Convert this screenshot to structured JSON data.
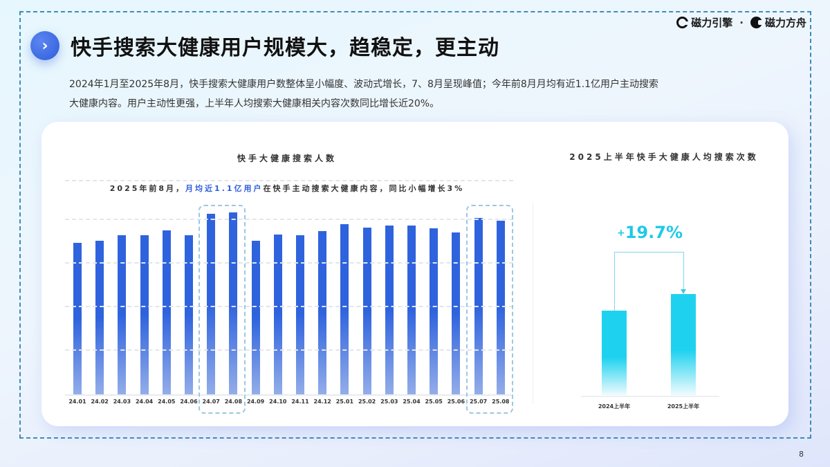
{
  "brand": {
    "logos": [
      {
        "name": "磁力引擎",
        "icon": "cili-engine-logo-icon"
      },
      {
        "name": "磁力方舟",
        "icon": "cili-ark-logo-icon"
      }
    ],
    "separator": "·"
  },
  "header": {
    "icon": "chevron-right-icon",
    "icon_glyph": "›",
    "title": "快手搜索大健康用户规模大，趋稳定，更主动"
  },
  "summary": {
    "line1": "2024年1月至2025年8月，快手搜索大健康用户数整体呈小幅度、波动式增长，7、8月呈现峰值；今年前8月月均有近1.1亿用户主动搜索",
    "line2": "大健康内容。用户主动性更强，上半年人均搜索大健康相关内容次数同比增长近20%。"
  },
  "left_chart": {
    "title": "快手大健康搜索人数",
    "subtitle_pre": "2025年前8月，",
    "subtitle_highlight": "月均近1.1亿用户",
    "subtitle_post": "在快手主动搜索大健康内容，同比小幅增长3%"
  },
  "right_chart": {
    "title": "2025上半年快手大健康人均搜索次数",
    "growth_sign": "+",
    "growth_value": "19.7%"
  },
  "colors": {
    "accent_blue": "#2f63de",
    "accent_cyan": "#1ed2ef",
    "frame_dash": "#3e8cb8"
  },
  "page_number": "8",
  "chart_data": [
    {
      "type": "bar",
      "title": "快手大健康搜索人数",
      "subtitle": "2025年前8月，月均近1.1亿用户在快手主动搜索大健康内容，同比小幅增长3%",
      "categories": [
        "24.01",
        "24.02",
        "24.03",
        "24.04",
        "24.05",
        "24.06",
        "24.07",
        "24.08",
        "24.09",
        "24.10",
        "24.11",
        "24.12",
        "25.01",
        "25.02",
        "25.03",
        "25.04",
        "25.05",
        "25.06",
        "25.07",
        "25.08"
      ],
      "values": [
        218,
        221,
        229,
        229,
        236,
        229,
        259,
        261,
        221,
        230,
        229,
        235,
        244,
        239,
        242,
        242,
        238,
        233,
        253,
        249
      ],
      "value_note": "relative bar heights (no y-axis labels shown)",
      "highlighted_groups": [
        [
          "24.07",
          "24.08"
        ],
        [
          "25.07",
          "25.08"
        ]
      ],
      "xlabel": "",
      "ylabel": "",
      "ylim": [
        0,
        312
      ],
      "gridlines": [
        62.5,
        125,
        187.5,
        250
      ],
      "grid": true,
      "legend": null
    },
    {
      "type": "bar",
      "title": "2025上半年快手大健康人均搜索次数",
      "categories": [
        "2024上半年",
        "2025上半年"
      ],
      "values": [
        100,
        119.7
      ],
      "value_note": "indexed relative values; 2025 is +19.7% vs 2024",
      "annotation": "+19.7%",
      "xlabel": "",
      "ylabel": "",
      "grid": false,
      "legend": null
    }
  ]
}
